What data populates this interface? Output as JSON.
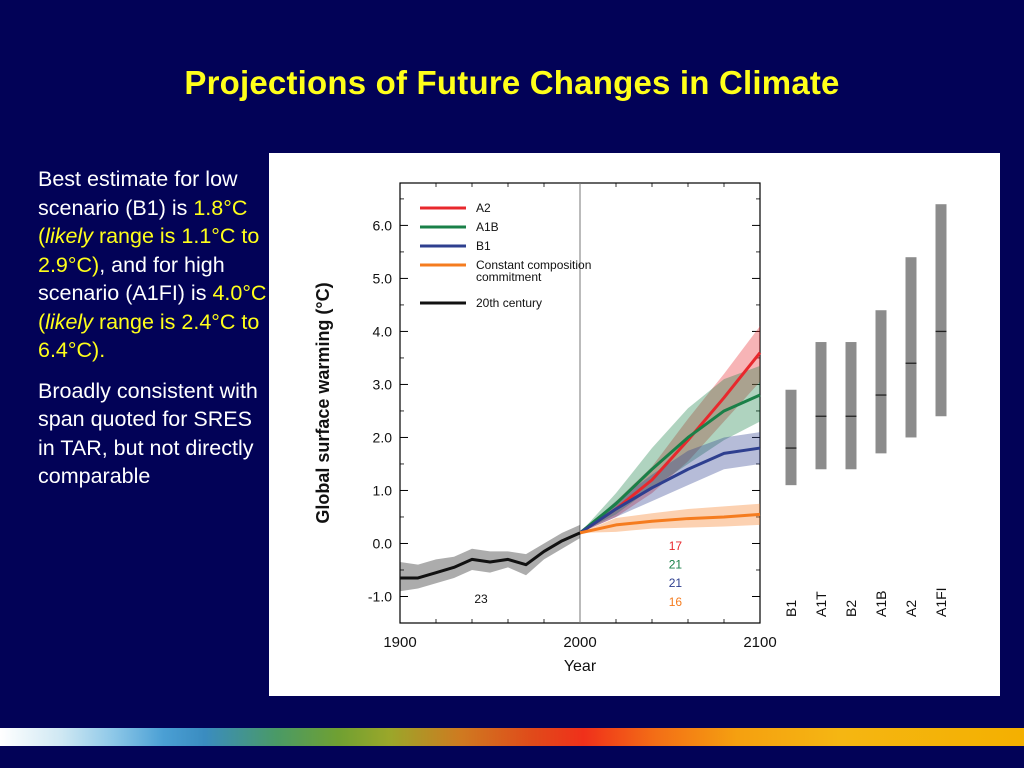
{
  "slide": {
    "title": "Projections of Future Changes in Climate"
  },
  "left_text": {
    "p1_a": "Best estimate for low scenario (B1) is ",
    "p1_b": "1.8°C (",
    "p1_c": "likely",
    "p1_d": " range is 1.1°C to 2.9°C)",
    "p1_e": ", and for high scenario (A1FI) is ",
    "p1_f": "4.0°C (",
    "p1_g": "likely",
    "p1_h": " range is 2.4°C to 6.4°C)",
    "p1_i": ".",
    "p2": "Broadly consistent with span quoted for SRES in TAR, but not directly comparable"
  },
  "colors": {
    "background": "#020257",
    "title": "#ffff1a",
    "highlight": "#ffff1a",
    "A2": "#e8282d",
    "A1B": "#1a8048",
    "B1": "#2e3f8f",
    "commitment": "#f57c1f",
    "century20": "#111111",
    "bars": "#8c8c8c"
  },
  "chart_data": [
    {
      "type": "line",
      "title": "",
      "xlabel": "Year",
      "ylabel": "Global surface warming (°C)",
      "xlim": [
        1900,
        2100
      ],
      "ylim": [
        -1.5,
        6.8
      ],
      "x_ticks": [
        "1900",
        "2000",
        "2100"
      ],
      "y_ticks": [
        "-1.0",
        "0.0",
        "1.0",
        "2.0",
        "3.0",
        "4.0",
        "5.0",
        "6.0"
      ],
      "legend_position": "top-left",
      "legend": [
        "A2",
        "A1B",
        "B1",
        "Constant composition",
        "commitment",
        "20th century"
      ],
      "series": [
        {
          "name": "A2",
          "color_key": "A2",
          "x": [
            2000,
            2020,
            2040,
            2060,
            2080,
            2100
          ],
          "values": [
            0.2,
            0.65,
            1.2,
            1.95,
            2.75,
            3.6
          ],
          "lower": [
            0.2,
            0.5,
            0.95,
            1.55,
            2.3,
            3.05
          ],
          "upper": [
            0.2,
            0.8,
            1.45,
            2.35,
            3.2,
            4.1
          ]
        },
        {
          "name": "A1B",
          "color_key": "A1B",
          "x": [
            2000,
            2020,
            2040,
            2060,
            2080,
            2100
          ],
          "values": [
            0.2,
            0.75,
            1.4,
            2.0,
            2.5,
            2.8
          ],
          "lower": [
            0.2,
            0.55,
            1.05,
            1.5,
            1.95,
            2.3
          ],
          "upper": [
            0.2,
            0.95,
            1.8,
            2.55,
            3.1,
            3.35
          ]
        },
        {
          "name": "B1",
          "color_key": "B1",
          "x": [
            2000,
            2020,
            2040,
            2060,
            2080,
            2100
          ],
          "values": [
            0.2,
            0.65,
            1.05,
            1.4,
            1.7,
            1.8
          ],
          "lower": [
            0.2,
            0.5,
            0.8,
            1.1,
            1.4,
            1.5
          ],
          "upper": [
            0.2,
            0.8,
            1.3,
            1.75,
            2.0,
            2.1
          ]
        },
        {
          "name": "Constant composition commitment",
          "color_key": "commitment",
          "x": [
            2000,
            2020,
            2040,
            2060,
            2080,
            2100
          ],
          "values": [
            0.2,
            0.35,
            0.42,
            0.47,
            0.5,
            0.55
          ],
          "lower": [
            0.2,
            0.22,
            0.28,
            0.3,
            0.32,
            0.35
          ],
          "upper": [
            0.2,
            0.48,
            0.57,
            0.65,
            0.7,
            0.75
          ]
        },
        {
          "name": "20th century",
          "color_key": "century20",
          "x": [
            1900,
            1910,
            1920,
            1930,
            1940,
            1950,
            1960,
            1970,
            1980,
            1990,
            2000
          ],
          "values": [
            -0.65,
            -0.65,
            -0.55,
            -0.45,
            -0.3,
            -0.35,
            -0.3,
            -0.4,
            -0.15,
            0.05,
            0.2
          ],
          "lower": [
            -0.9,
            -0.85,
            -0.75,
            -0.65,
            -0.5,
            -0.55,
            -0.45,
            -0.6,
            -0.3,
            -0.1,
            0.1
          ],
          "upper": [
            -0.35,
            -0.4,
            -0.3,
            -0.25,
            -0.1,
            -0.15,
            -0.15,
            -0.2,
            0.0,
            0.2,
            0.35
          ]
        }
      ],
      "annotations": [
        {
          "text": "23",
          "color_key": "century20",
          "x": 1945,
          "y": -1.05
        },
        {
          "text": "17",
          "color_key": "A2",
          "x": 2053,
          "y": -0.05
        },
        {
          "text": "21",
          "color_key": "A1B",
          "x": 2053,
          "y": -0.4
        },
        {
          "text": "21",
          "color_key": "B1",
          "x": 2053,
          "y": -0.75
        },
        {
          "text": "16",
          "color_key": "commitment",
          "x": 2053,
          "y": -1.1
        }
      ]
    },
    {
      "type": "bar",
      "title": "",
      "categories": [
        "B1",
        "A1T",
        "B2",
        "A1B",
        "A2",
        "A1FI"
      ],
      "low": [
        1.1,
        1.4,
        1.4,
        1.7,
        2.0,
        2.4
      ],
      "best": [
        1.8,
        2.4,
        2.4,
        2.8,
        3.4,
        4.0
      ],
      "high": [
        2.9,
        3.8,
        3.8,
        4.4,
        5.4,
        6.4
      ]
    }
  ]
}
